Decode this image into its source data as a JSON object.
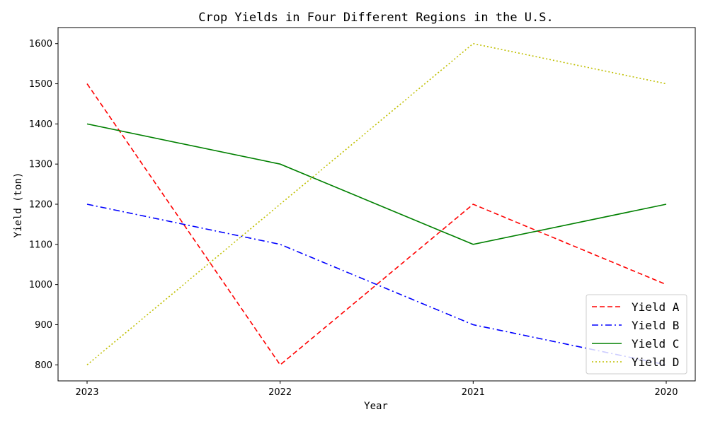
{
  "chart_data": {
    "type": "line",
    "title": "Crop Yields in Four Different Regions in the U.S.",
    "xlabel": "Year",
    "ylabel": "Yield (ton)",
    "categories": [
      "2023",
      "2022",
      "2021",
      "2020"
    ],
    "ylim": [
      760,
      1640
    ],
    "yticks": [
      800,
      900,
      1000,
      1100,
      1200,
      1300,
      1400,
      1500,
      1600
    ],
    "grid": false,
    "legend_position": "bottom-right",
    "series": [
      {
        "name": "Yield A",
        "values": [
          1500,
          800,
          1200,
          1000
        ],
        "color": "#ff0000",
        "dash": "dashed"
      },
      {
        "name": "Yield B",
        "values": [
          1200,
          1100,
          900,
          800
        ],
        "color": "#0000ff",
        "dash": "dashdot"
      },
      {
        "name": "Yield C",
        "values": [
          1400,
          1300,
          1100,
          1200
        ],
        "color": "#008000",
        "dash": "solid"
      },
      {
        "name": "Yield D",
        "values": [
          800,
          1200,
          1600,
          1500
        ],
        "color": "#bfbf00",
        "dash": "dotted"
      }
    ]
  }
}
